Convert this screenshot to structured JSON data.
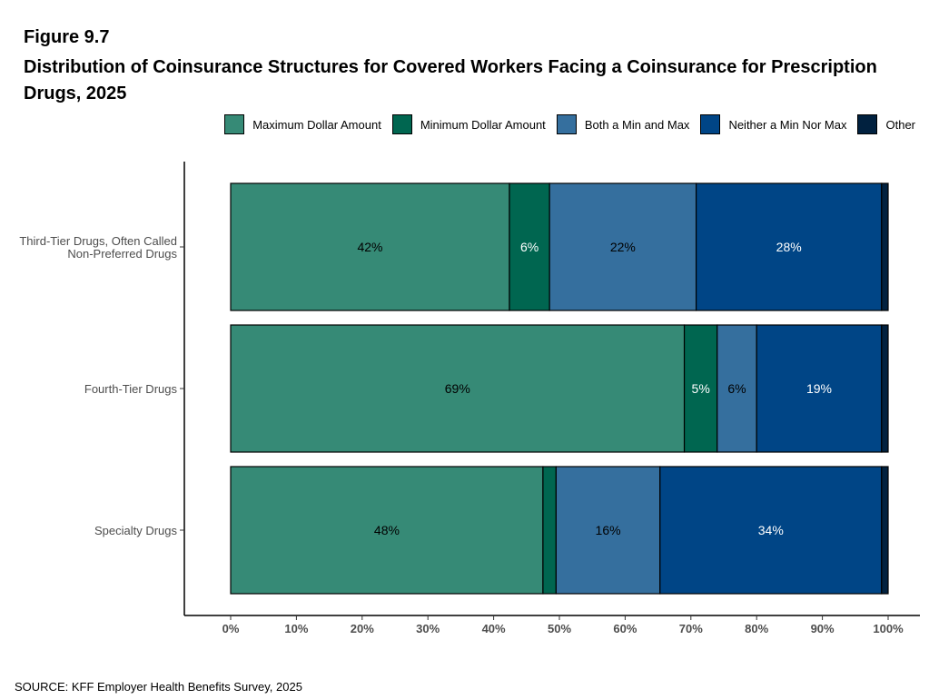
{
  "figure": {
    "label": "Figure 9.7",
    "title": "Distribution of Coinsurance Structures for Covered Workers Facing a Coinsurance for Prescription Drugs, 2025",
    "source": "SOURCE: KFF Employer Health Benefits Survey, 2025"
  },
  "chart_data": {
    "type": "bar",
    "orientation": "horizontal",
    "stacked": true,
    "title": "Distribution of Coinsurance Structures for Covered Workers Facing a Coinsurance for Prescription Drugs, 2025",
    "xlabel": "",
    "ylabel": "",
    "xlim": [
      0,
      100
    ],
    "x_ticks": [
      "0%",
      "10%",
      "20%",
      "30%",
      "40%",
      "50%",
      "60%",
      "70%",
      "80%",
      "90%",
      "100%"
    ],
    "grid": false,
    "legend_position": "top-right",
    "categories": [
      "Third-Tier Drugs, Often Called Non-Preferred Drugs",
      "Fourth-Tier Drugs",
      "Specialty Drugs"
    ],
    "category_lines": [
      [
        "Third-Tier Drugs, Often Called",
        "Non-Preferred Drugs"
      ],
      [
        "Fourth-Tier Drugs"
      ],
      [
        "Specialty Drugs"
      ]
    ],
    "series": [
      {
        "name": "Maximum Dollar Amount",
        "color": "#368A76",
        "label_color": "#000000",
        "values": [
          42.4,
          69.0,
          47.5
        ],
        "labels": [
          "42%",
          "69%",
          "48%"
        ]
      },
      {
        "name": "Minimum Dollar Amount",
        "color": "#006650",
        "label_color": "#ffffff",
        "values": [
          6.1,
          5.0,
          2.0
        ],
        "labels": [
          "6%",
          "5%",
          ""
        ]
      },
      {
        "name": "Both a Min and Max",
        "color": "#356F9E",
        "label_color": "#000000",
        "values": [
          22.3,
          6.0,
          15.8
        ],
        "labels": [
          "22%",
          "6%",
          "16%"
        ]
      },
      {
        "name": "Neither a Min Nor Max",
        "color": "#004586",
        "label_color": "#ffffff",
        "values": [
          28.2,
          19.0,
          33.7
        ],
        "labels": [
          "28%",
          "19%",
          "34%"
        ]
      },
      {
        "name": "Other",
        "color": "#01213F",
        "label_color": "#ffffff",
        "values": [
          1.0,
          1.0,
          1.0
        ],
        "labels": [
          "",
          "",
          ""
        ]
      }
    ]
  }
}
